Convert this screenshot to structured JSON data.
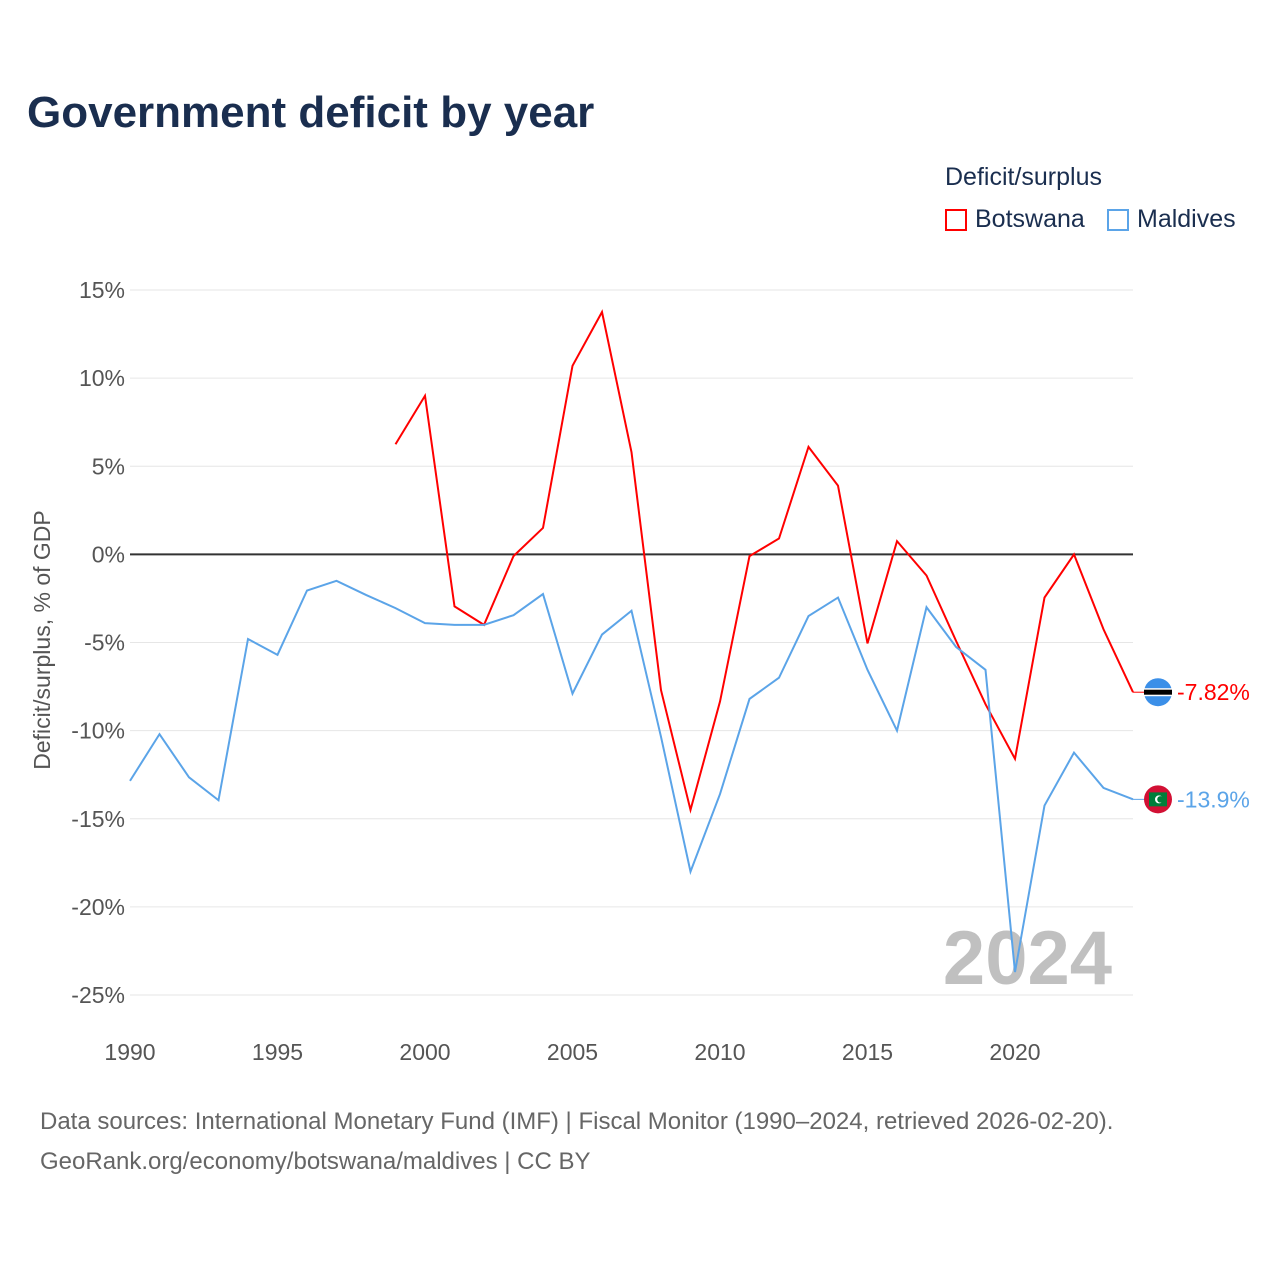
{
  "title": "Government deficit by year",
  "legend": {
    "title": "Deficit/surplus",
    "items": [
      "Botswana",
      "Maldives"
    ]
  },
  "footer": {
    "line1": "Data sources: International Monetary Fund (IMF) | Fiscal Monitor (1990–2024, retrieved 2026-02-20).",
    "line2": "GeoRank.org/economy/botswana/maldives | CC BY"
  },
  "chart_data": {
    "type": "line",
    "title": "Government deficit by year",
    "xlabel": "",
    "ylabel": "Deficit/surplus, % of GDP",
    "xlim": [
      1990,
      2024
    ],
    "ylim": [
      -25,
      15
    ],
    "yticks": [
      15,
      10,
      5,
      0,
      -5,
      -10,
      -15,
      -20,
      -25
    ],
    "ytick_labels": [
      "15%",
      "10%",
      "5%",
      "0%",
      "-5%",
      "-10%",
      "-15%",
      "-20%",
      "-25%"
    ],
    "xticks": [
      1990,
      1995,
      2000,
      2005,
      2010,
      2015,
      2020
    ],
    "xtick_labels": [
      "1990",
      "1995",
      "2000",
      "2005",
      "2010",
      "2015",
      "2020"
    ],
    "year_watermark": "2024",
    "series": [
      {
        "name": "Botswana",
        "color": "#ff0000",
        "end_label": "-7.82%",
        "x": [
          1999,
          2000,
          2001,
          2002,
          2003,
          2004,
          2005,
          2006,
          2007,
          2008,
          2009,
          2010,
          2011,
          2012,
          2013,
          2014,
          2015,
          2016,
          2017,
          2018,
          2019,
          2020,
          2021,
          2022,
          2023,
          2024
        ],
        "values": [
          6.25,
          9.0,
          -2.95,
          -4.0,
          -0.1,
          1.5,
          10.7,
          13.75,
          5.8,
          -7.7,
          -14.5,
          -8.35,
          -0.1,
          0.9,
          6.1,
          3.9,
          -5.05,
          0.75,
          -1.2,
          -4.9,
          -8.5,
          -11.6,
          -2.45,
          0.0,
          -4.25,
          -7.82
        ]
      },
      {
        "name": "Maldives",
        "color": "#5ba4e8",
        "end_label": "-13.9%",
        "x": [
          1990,
          1991,
          1992,
          1993,
          1994,
          1995,
          1996,
          1997,
          1998,
          1999,
          2000,
          2001,
          2002,
          2003,
          2004,
          2005,
          2006,
          2007,
          2008,
          2009,
          2010,
          2011,
          2012,
          2013,
          2014,
          2015,
          2016,
          2017,
          2018,
          2019,
          2020,
          2021,
          2022,
          2023,
          2024
        ],
        "values": [
          -12.85,
          -10.2,
          -12.65,
          -13.95,
          -4.8,
          -5.7,
          -2.05,
          -1.5,
          -2.3,
          -3.05,
          -3.9,
          -4.0,
          -4.0,
          -3.45,
          -2.25,
          -7.9,
          -4.55,
          -3.2,
          -10.35,
          -18.0,
          -13.6,
          -8.2,
          -7.0,
          -3.5,
          -2.45,
          -6.55,
          -10.0,
          -3.0,
          -5.25,
          -6.55,
          -23.7,
          -14.25,
          -11.25,
          -13.25,
          -13.9
        ]
      }
    ]
  }
}
